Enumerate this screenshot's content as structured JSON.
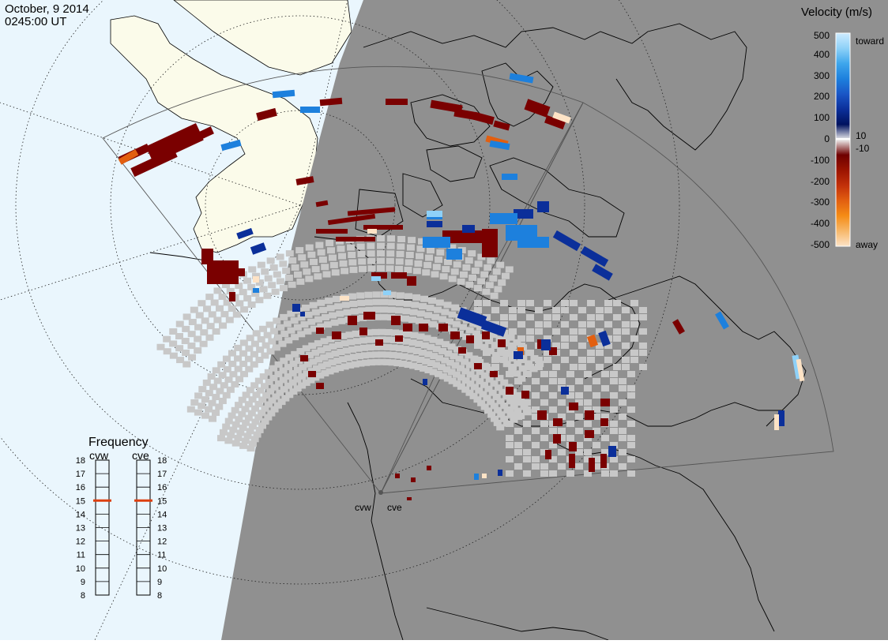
{
  "header": {
    "date": "October, 9 2014",
    "time": "0245:00 UT"
  },
  "colors": {
    "day_ocean": "#eaf6fd",
    "day_land": "#fbfbea",
    "night": "#909090",
    "ground_scatter": "#c8c8c8",
    "coastline": "#000000",
    "fov_outline": "#606060",
    "frequency_marker": "#dd3f0f"
  },
  "velocity_scale": {
    "title": "Velocity (m/s)",
    "unit": "m/s",
    "toward_label": "toward",
    "away_label": "away",
    "ticks": [
      "500",
      "400",
      "300",
      "200",
      "100",
      "10",
      "0",
      "-10",
      "-100",
      "-200",
      "-300",
      "-400",
      "-500"
    ],
    "color_stops": [
      "#cdecff",
      "#8ed1f8",
      "#3ea6ec",
      "#1d80dd",
      "#1a56c6",
      "#0b2f9a",
      "#00125e",
      "#eeeeee",
      "#6e0000",
      "#9b1400",
      "#c2300a",
      "#e25f10",
      "#f58c15",
      "#f7b86a",
      "#fde3c6"
    ]
  },
  "frequency_panel": {
    "title": "Frequency",
    "radars": [
      {
        "name": "cvw",
        "frequency_mhz": 15
      },
      {
        "name": "cve",
        "frequency_mhz": 15
      }
    ],
    "ticks": [
      "18",
      "17",
      "16",
      "15",
      "14",
      "13",
      "12",
      "11",
      "10",
      "9",
      "8"
    ]
  },
  "radars": {
    "cvw_label": "cvw",
    "cve_label": "cve"
  }
}
